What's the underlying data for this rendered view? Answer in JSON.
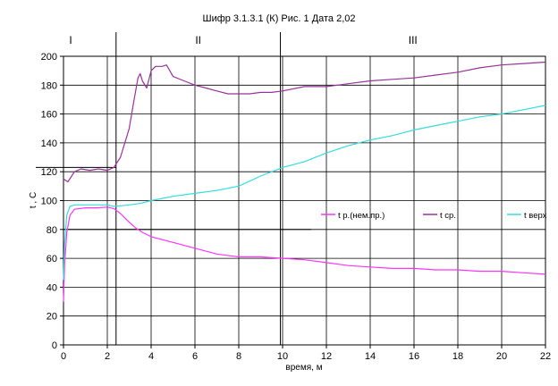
{
  "chart_data": {
    "type": "line",
    "title": "Шифр 3.1.3.1 (К) Рис. 1 Дата 2,02",
    "xlabel": "время, м",
    "ylabel": "t , C",
    "xlim": [
      0,
      22
    ],
    "ylim": [
      0,
      200
    ],
    "x_ticks": [
      "0",
      "2",
      "4",
      "6",
      "8",
      "10",
      "12",
      "14",
      "16",
      "18",
      "20",
      "22"
    ],
    "y_ticks": [
      "0",
      "20",
      "40",
      "60",
      "80",
      "100",
      "120",
      "140",
      "160",
      "180",
      "200"
    ],
    "grid": true,
    "legend_position": "center-right",
    "zones": [
      {
        "label": "I",
        "x_start": 0,
        "x_end": 2.4
      },
      {
        "label": "II",
        "x_start": 2.4,
        "x_end": 9.9
      },
      {
        "label": "III",
        "x_start": 9.9,
        "x_end": 22
      }
    ],
    "series": [
      {
        "name": "t р.(нем.пр.)",
        "color": "#ff33ff",
        "points": [
          [
            0,
            30
          ],
          [
            0.05,
            55
          ],
          [
            0.15,
            78
          ],
          [
            0.3,
            90
          ],
          [
            0.5,
            94
          ],
          [
            1,
            95
          ],
          [
            1.5,
            95
          ],
          [
            2,
            95.5
          ],
          [
            2.3,
            94.5
          ],
          [
            2.6,
            91
          ],
          [
            3,
            85
          ],
          [
            3.3,
            81
          ],
          [
            3.6,
            78
          ],
          [
            4,
            75
          ],
          [
            5,
            71
          ],
          [
            6,
            67
          ],
          [
            7,
            63
          ],
          [
            8,
            61
          ],
          [
            9,
            61
          ],
          [
            10,
            60
          ],
          [
            11,
            59
          ],
          [
            12,
            57
          ],
          [
            13,
            55
          ],
          [
            14,
            54
          ],
          [
            15,
            53
          ],
          [
            16,
            53
          ],
          [
            17,
            52
          ],
          [
            18,
            52
          ],
          [
            19,
            51
          ],
          [
            20,
            51
          ],
          [
            21,
            50
          ],
          [
            22,
            49
          ]
        ]
      },
      {
        "name": "t ср.",
        "color": "#993399",
        "points": [
          [
            0,
            115
          ],
          [
            0.2,
            113
          ],
          [
            0.5,
            120
          ],
          [
            0.8,
            122
          ],
          [
            1.2,
            121
          ],
          [
            1.6,
            122
          ],
          [
            2,
            121
          ],
          [
            2.3,
            123
          ],
          [
            2.6,
            130
          ],
          [
            3,
            150
          ],
          [
            3.2,
            168
          ],
          [
            3.4,
            185
          ],
          [
            3.5,
            188
          ],
          [
            3.6,
            183
          ],
          [
            3.8,
            178
          ],
          [
            4,
            190
          ],
          [
            4.2,
            193
          ],
          [
            4.5,
            193
          ],
          [
            4.7,
            194
          ],
          [
            5,
            186
          ],
          [
            5.5,
            183
          ],
          [
            6,
            180
          ],
          [
            6.5,
            178
          ],
          [
            7,
            176
          ],
          [
            7.5,
            174
          ],
          [
            8,
            174
          ],
          [
            8.5,
            174
          ],
          [
            9,
            175
          ],
          [
            9.5,
            175
          ],
          [
            10,
            176
          ],
          [
            11,
            179
          ],
          [
            12,
            179
          ],
          [
            13,
            181
          ],
          [
            14,
            183
          ],
          [
            15,
            184
          ],
          [
            16,
            185
          ],
          [
            17,
            187
          ],
          [
            18,
            189
          ],
          [
            19,
            192
          ],
          [
            20,
            194
          ],
          [
            21,
            195
          ],
          [
            22,
            196
          ]
        ]
      },
      {
        "name": "t верх",
        "color": "#33dddd",
        "points": [
          [
            0,
            45
          ],
          [
            0.05,
            70
          ],
          [
            0.15,
            90
          ],
          [
            0.3,
            96
          ],
          [
            0.5,
            97
          ],
          [
            1,
            97
          ],
          [
            1.5,
            97
          ],
          [
            2,
            97
          ],
          [
            2.3,
            96
          ],
          [
            3,
            97
          ],
          [
            3.5,
            98
          ],
          [
            4,
            100
          ],
          [
            5,
            103
          ],
          [
            6,
            105
          ],
          [
            7,
            107
          ],
          [
            8,
            110
          ],
          [
            9,
            117
          ],
          [
            10,
            123
          ],
          [
            11,
            127
          ],
          [
            12,
            133
          ],
          [
            13,
            138
          ],
          [
            14,
            142
          ],
          [
            15,
            145
          ],
          [
            16,
            149
          ],
          [
            17,
            152
          ],
          [
            18,
            155
          ],
          [
            19,
            158
          ],
          [
            20,
            160
          ],
          [
            21,
            163
          ],
          [
            22,
            166
          ]
        ]
      }
    ]
  }
}
